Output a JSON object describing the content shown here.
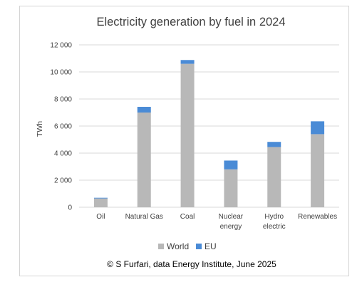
{
  "chart_data": {
    "type": "bar",
    "stacked": true,
    "title": "Electricity generation by fuel in 2024",
    "ylabel": "TWh",
    "xlabel": "",
    "ylim": [
      0,
      12000
    ],
    "yticks": [
      "0",
      "2 000",
      "4 000",
      "6 000",
      "8 000",
      "10 000",
      "12 000"
    ],
    "ytick_values": [
      0,
      2000,
      4000,
      6000,
      8000,
      10000,
      12000
    ],
    "grid": true,
    "legend_position": "bottom",
    "categories": [
      [
        "Oil"
      ],
      [
        "Natural Gas"
      ],
      [
        "Coal"
      ],
      [
        "Nuclear",
        "energy"
      ],
      [
        "Hydro",
        "electric"
      ],
      [
        "Renewables"
      ]
    ],
    "series": [
      {
        "name": "World",
        "color": "#b8b8b8",
        "values": [
          650,
          7000,
          10600,
          2800,
          4450,
          5400
        ]
      },
      {
        "name": "EU",
        "color": "#4a8bd6",
        "values": [
          50,
          420,
          280,
          650,
          380,
          950
        ]
      }
    ]
  },
  "credit": "© S Furfari, data Energy Institute, June 2025"
}
